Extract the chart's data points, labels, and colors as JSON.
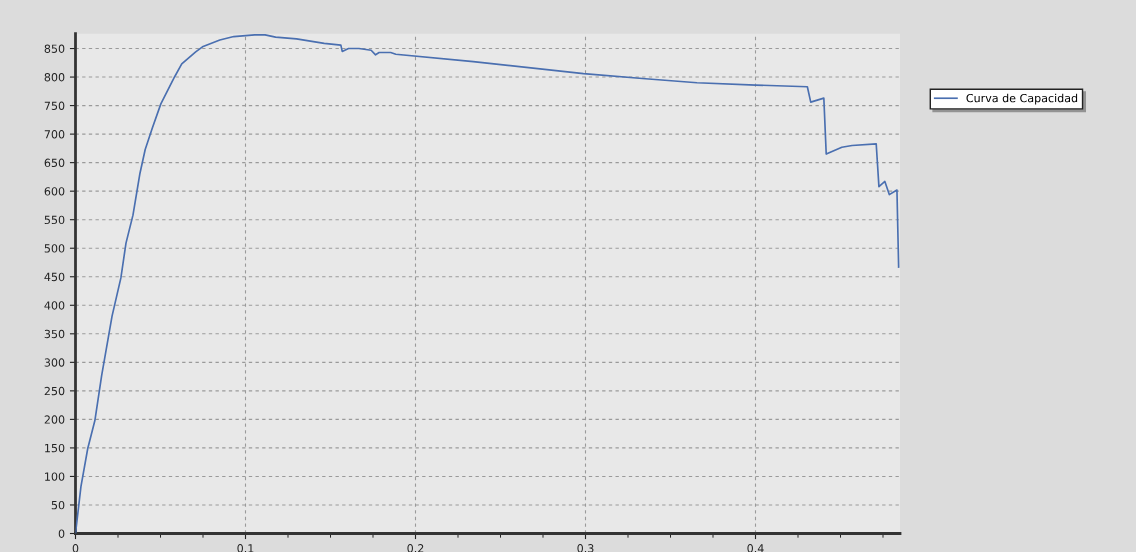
{
  "chart_data": {
    "type": "line",
    "x": [
      0,
      0.0032,
      0.0072,
      0.0114,
      0.0154,
      0.0215,
      0.0267,
      0.0297,
      0.0338,
      0.0379,
      0.041,
      0.0451,
      0.0502,
      0.0584,
      0.0625,
      0.0707,
      0.0747,
      0.0849,
      0.0931,
      0.1054,
      0.1115,
      0.1177,
      0.13,
      0.1463,
      0.1561,
      0.1569,
      0.1606,
      0.1667,
      0.1739,
      0.1765,
      0.1786,
      0.1854,
      0.1884,
      0.234,
      0.2988,
      0.3353,
      0.3656,
      0.4001,
      0.4305,
      0.4325,
      0.4402,
      0.4416,
      0.4508,
      0.4568,
      0.471,
      0.4726,
      0.4761,
      0.4787,
      0.4832,
      0.4842
    ],
    "series": [
      {
        "name": "Curva de Capacidad",
        "color": "#4a6fb0",
        "values": [
          0,
          82,
          149,
          198,
          277,
          381,
          448,
          509,
          558,
          631,
          673,
          710,
          753,
          801,
          823,
          844,
          853,
          865,
          871,
          874,
          874,
          870,
          867,
          859,
          856,
          845,
          850,
          850,
          847,
          839,
          843,
          843,
          840,
          827,
          806,
          797,
          790,
          786,
          783,
          756,
          763,
          665,
          677,
          680,
          683,
          608,
          617,
          594,
          602,
          467
        ]
      }
    ],
    "xlim": [
      0,
      0.485
    ],
    "xticks": [
      0,
      {
        "value": 0.025,
        "label": null
      },
      {
        "value": 0.05,
        "label": null
      },
      {
        "value": 0.075,
        "label": null
      },
      0.1,
      {
        "value": 0.125,
        "label": null
      },
      {
        "value": 0.15,
        "label": null
      },
      {
        "value": 0.175,
        "label": null
      },
      0.2,
      {
        "value": 0.225,
        "label": null
      },
      {
        "value": 0.25,
        "label": null
      },
      {
        "value": 0.275,
        "label": null
      },
      0.3,
      {
        "value": 0.325,
        "label": null
      },
      {
        "value": 0.35,
        "label": null
      },
      {
        "value": 0.375,
        "label": null
      },
      0.4,
      {
        "value": 0.425,
        "label": null
      },
      {
        "value": 0.45,
        "label": null
      },
      {
        "value": 0.475,
        "label": null
      }
    ],
    "ylim": [
      0,
      876
    ],
    "yticks": [
      0,
      50,
      100,
      150,
      200,
      250,
      300,
      350,
      400,
      450,
      500,
      550,
      600,
      650,
      700,
      750,
      800,
      850
    ],
    "grid": true,
    "legend": "top right",
    "marker": "none",
    "line_style": "solid"
  }
}
